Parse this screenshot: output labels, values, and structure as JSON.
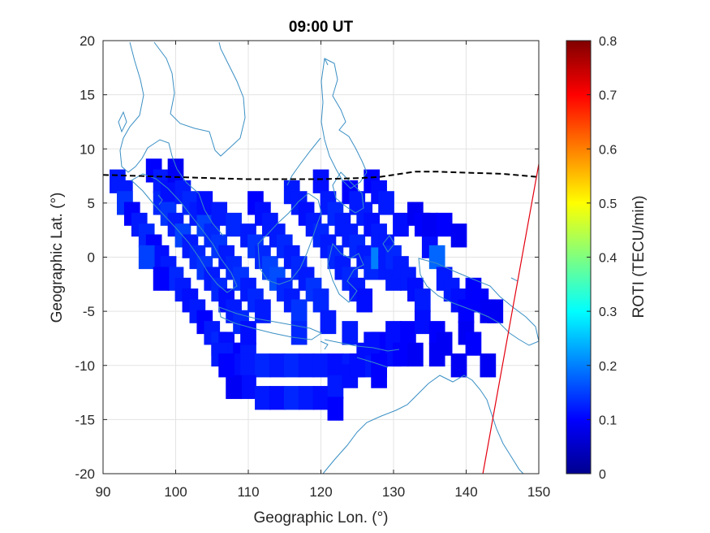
{
  "chart_data": {
    "type": "heatmap",
    "title": "09:00 UT",
    "xlabel": "Geographic Lon. (°)",
    "ylabel": "Geographic Lat. (°)",
    "xlim": [
      90,
      150
    ],
    "ylim": [
      -20,
      20
    ],
    "xticks": [
      90,
      100,
      110,
      120,
      130,
      140,
      150
    ],
    "yticks": [
      20,
      15,
      10,
      5,
      0,
      -5,
      -10,
      -15,
      -20
    ],
    "grid": true,
    "colorbar": {
      "label": "ROTI (TECU/min)",
      "range": [
        0,
        0.8
      ],
      "ticks": [
        0.8,
        0.7,
        0.6,
        0.5,
        0.4,
        0.3,
        0.2,
        0.1,
        0
      ],
      "colormap": "jet",
      "placement": "right"
    },
    "colors": {
      "coastline": "#3a8fc4",
      "equator_line": "#000000",
      "terminator_line": "#e3000f"
    },
    "dashed_line": {
      "name": "magnetic equator",
      "points": [
        [
          90,
          7.6
        ],
        [
          95,
          7.5
        ],
        [
          100,
          7.4
        ],
        [
          105,
          7.3
        ],
        [
          110,
          7.2
        ],
        [
          115,
          7.2
        ],
        [
          120,
          7.2
        ],
        [
          125,
          7.3
        ],
        [
          128,
          7.4
        ],
        [
          130,
          7.6
        ],
        [
          133,
          7.9
        ],
        [
          136,
          7.9
        ],
        [
          140,
          7.8
        ],
        [
          145,
          7.7
        ],
        [
          150,
          7.4
        ]
      ]
    },
    "solid_line": {
      "name": "terminator",
      "points": [
        [
          142.3,
          -20
        ],
        [
          150,
          8.6
        ]
      ]
    },
    "cells": [
      [
        92,
        7,
        0.12
      ],
      [
        93,
        6,
        0.12
      ],
      [
        93,
        5,
        0.14
      ],
      [
        94,
        4,
        0.1
      ],
      [
        95,
        3,
        0.12
      ],
      [
        96,
        2,
        0.13
      ],
      [
        97,
        1,
        0.1
      ],
      [
        98,
        0,
        0.11
      ],
      [
        99,
        -1,
        0.12
      ],
      [
        100,
        -2,
        0.13
      ],
      [
        101,
        -3,
        0.12
      ],
      [
        102,
        -4,
        0.11
      ],
      [
        103,
        -5,
        0.12
      ],
      [
        104,
        -6,
        0.1
      ],
      [
        105,
        -7,
        0.12
      ],
      [
        106,
        -8,
        0.13
      ],
      [
        107,
        -8,
        0.11
      ],
      [
        108,
        -9,
        0.12
      ],
      [
        109,
        -9,
        0.1
      ],
      [
        110,
        -9,
        0.12
      ],
      [
        97,
        8,
        0.1
      ],
      [
        98,
        7,
        0.12
      ],
      [
        98,
        5,
        0.13
      ],
      [
        99,
        6,
        0.11
      ],
      [
        99,
        4,
        0.14
      ],
      [
        100,
        3,
        0.12
      ],
      [
        101,
        2,
        0.15
      ],
      [
        102,
        1,
        0.12
      ],
      [
        103,
        0,
        0.13
      ],
      [
        104,
        -1,
        0.14
      ],
      [
        105,
        -2,
        0.12
      ],
      [
        106,
        -3,
        0.13
      ],
      [
        107,
        -4,
        0.11
      ],
      [
        108,
        -5,
        0.12
      ],
      [
        109,
        -6,
        0.13
      ],
      [
        110,
        -7,
        0.11
      ],
      [
        100,
        8,
        0.09
      ],
      [
        101,
        6,
        0.12
      ],
      [
        102,
        5,
        0.13
      ],
      [
        103,
        4,
        0.12
      ],
      [
        104,
        3,
        0.15
      ],
      [
        105,
        2,
        0.13
      ],
      [
        106,
        1,
        0.14
      ],
      [
        107,
        0,
        0.12
      ],
      [
        108,
        -1,
        0.13
      ],
      [
        109,
        -2,
        0.14
      ],
      [
        110,
        -3,
        0.12
      ],
      [
        111,
        -4,
        0.13
      ],
      [
        112,
        -5,
        0.12
      ],
      [
        104,
        5,
        0.11
      ],
      [
        106,
        4,
        0.12
      ],
      [
        108,
        3,
        0.13
      ],
      [
        110,
        2,
        0.12
      ],
      [
        111,
        1,
        0.14
      ],
      [
        112,
        0,
        0.13
      ],
      [
        113,
        -1,
        0.15
      ],
      [
        114,
        -2,
        0.16
      ],
      [
        115,
        -3,
        0.13
      ],
      [
        116,
        -4,
        0.12
      ],
      [
        117,
        -5,
        0.14
      ],
      [
        111,
        5,
        0.1
      ],
      [
        112,
        4,
        0.11
      ],
      [
        113,
        3,
        0.12
      ],
      [
        114,
        2,
        0.12
      ],
      [
        115,
        1,
        0.13
      ],
      [
        116,
        0,
        0.12
      ],
      [
        117,
        -1,
        0.13
      ],
      [
        118,
        -2,
        0.12
      ],
      [
        119,
        -3,
        0.14
      ],
      [
        120,
        -4,
        0.13
      ],
      [
        116,
        6,
        0.12
      ],
      [
        117,
        5,
        0.12
      ],
      [
        118,
        4,
        0.11
      ],
      [
        119,
        3,
        0.12
      ],
      [
        120,
        2,
        0.13
      ],
      [
        121,
        1,
        0.12
      ],
      [
        122,
        0,
        0.13
      ],
      [
        123,
        -1,
        0.12
      ],
      [
        124,
        -2,
        0.13
      ],
      [
        125,
        -3,
        0.12
      ],
      [
        126,
        -4,
        0.11
      ],
      [
        120,
        7,
        0.11
      ],
      [
        121,
        5,
        0.12
      ],
      [
        122,
        4,
        0.13
      ],
      [
        123,
        3,
        0.12
      ],
      [
        124,
        2,
        0.12
      ],
      [
        125,
        1,
        0.13
      ],
      [
        126,
        0,
        0.12
      ],
      [
        127,
        -1,
        0.13
      ],
      [
        128,
        0,
        0.2
      ],
      [
        129,
        -1,
        0.12
      ],
      [
        130,
        -2,
        0.12
      ],
      [
        124,
        6,
        0.1
      ],
      [
        125,
        5,
        0.12
      ],
      [
        126,
        4,
        0.12
      ],
      [
        127,
        3,
        0.11
      ],
      [
        128,
        2,
        0.12
      ],
      [
        129,
        1,
        0.12
      ],
      [
        130,
        0,
        0.13
      ],
      [
        131,
        -1,
        0.12
      ],
      [
        132,
        -2,
        0.12
      ],
      [
        133,
        -3,
        0.11
      ],
      [
        134,
        -4,
        0.12
      ],
      [
        127,
        7,
        0.1
      ],
      [
        128,
        6,
        0.11
      ],
      [
        129,
        5,
        0.12
      ],
      [
        131,
        3,
        0.11
      ],
      [
        133,
        4,
        0.09
      ],
      [
        134,
        3,
        0.1
      ],
      [
        135,
        1,
        0.11
      ],
      [
        136,
        0,
        0.18
      ],
      [
        137,
        -2,
        0.12
      ],
      [
        138,
        -3,
        0.12
      ],
      [
        139,
        -4,
        0.11
      ],
      [
        140,
        -5,
        0.1
      ],
      [
        135,
        3,
        0.09
      ],
      [
        137,
        3,
        0.1
      ],
      [
        139,
        2,
        0.09
      ],
      [
        141,
        -3,
        0.1
      ],
      [
        142,
        -4,
        0.1
      ],
      [
        143,
        -5,
        0.09
      ],
      [
        144,
        -5,
        0.09
      ],
      [
        106,
        -9,
        0.12
      ],
      [
        108,
        -10,
        0.11
      ],
      [
        110,
        -10,
        0.12
      ],
      [
        112,
        -10,
        0.13
      ],
      [
        114,
        -10,
        0.12
      ],
      [
        116,
        -10,
        0.13
      ],
      [
        118,
        -10,
        0.12
      ],
      [
        120,
        -10,
        0.12
      ],
      [
        122,
        -10,
        0.11
      ],
      [
        124,
        -10,
        0.12
      ],
      [
        126,
        -9,
        0.11
      ],
      [
        128,
        -8,
        0.1
      ],
      [
        130,
        -7,
        0.11
      ],
      [
        132,
        -7,
        0.1
      ],
      [
        134,
        -6,
        0.11
      ],
      [
        136,
        -7,
        0.1
      ],
      [
        110,
        -12,
        0.11
      ],
      [
        112,
        -13,
        0.12
      ],
      [
        114,
        -13,
        0.11
      ],
      [
        116,
        -13,
        0.13
      ],
      [
        118,
        -13,
        0.12
      ],
      [
        120,
        -13,
        0.11
      ],
      [
        122,
        -12,
        0.12
      ],
      [
        124,
        -11,
        0.11
      ],
      [
        126,
        -10,
        0.12
      ],
      [
        128,
        -11,
        0.1
      ],
      [
        130,
        -9,
        0.11
      ],
      [
        108,
        -12,
        0.09
      ],
      [
        122,
        -14,
        0.1
      ],
      [
        96,
        0,
        0.15
      ],
      [
        98,
        -2,
        0.1
      ],
      [
        107,
        -10,
        0.1
      ],
      [
        117,
        -7,
        0.13
      ],
      [
        121,
        -6,
        0.12
      ],
      [
        124,
        -7,
        0.12
      ],
      [
        127,
        -8,
        0.11
      ],
      [
        131,
        -9,
        0.1
      ],
      [
        133,
        -9,
        0.09
      ],
      [
        136,
        -9,
        0.09
      ],
      [
        139,
        -10,
        0.09
      ],
      [
        143,
        -10,
        0.09
      ],
      [
        137,
        -8,
        0.09
      ],
      [
        140,
        -7,
        0.09
      ],
      [
        141,
        -8,
        0.1
      ],
      [
        128,
        -10,
        0.1
      ],
      [
        125,
        -10,
        0.11
      ]
    ]
  }
}
